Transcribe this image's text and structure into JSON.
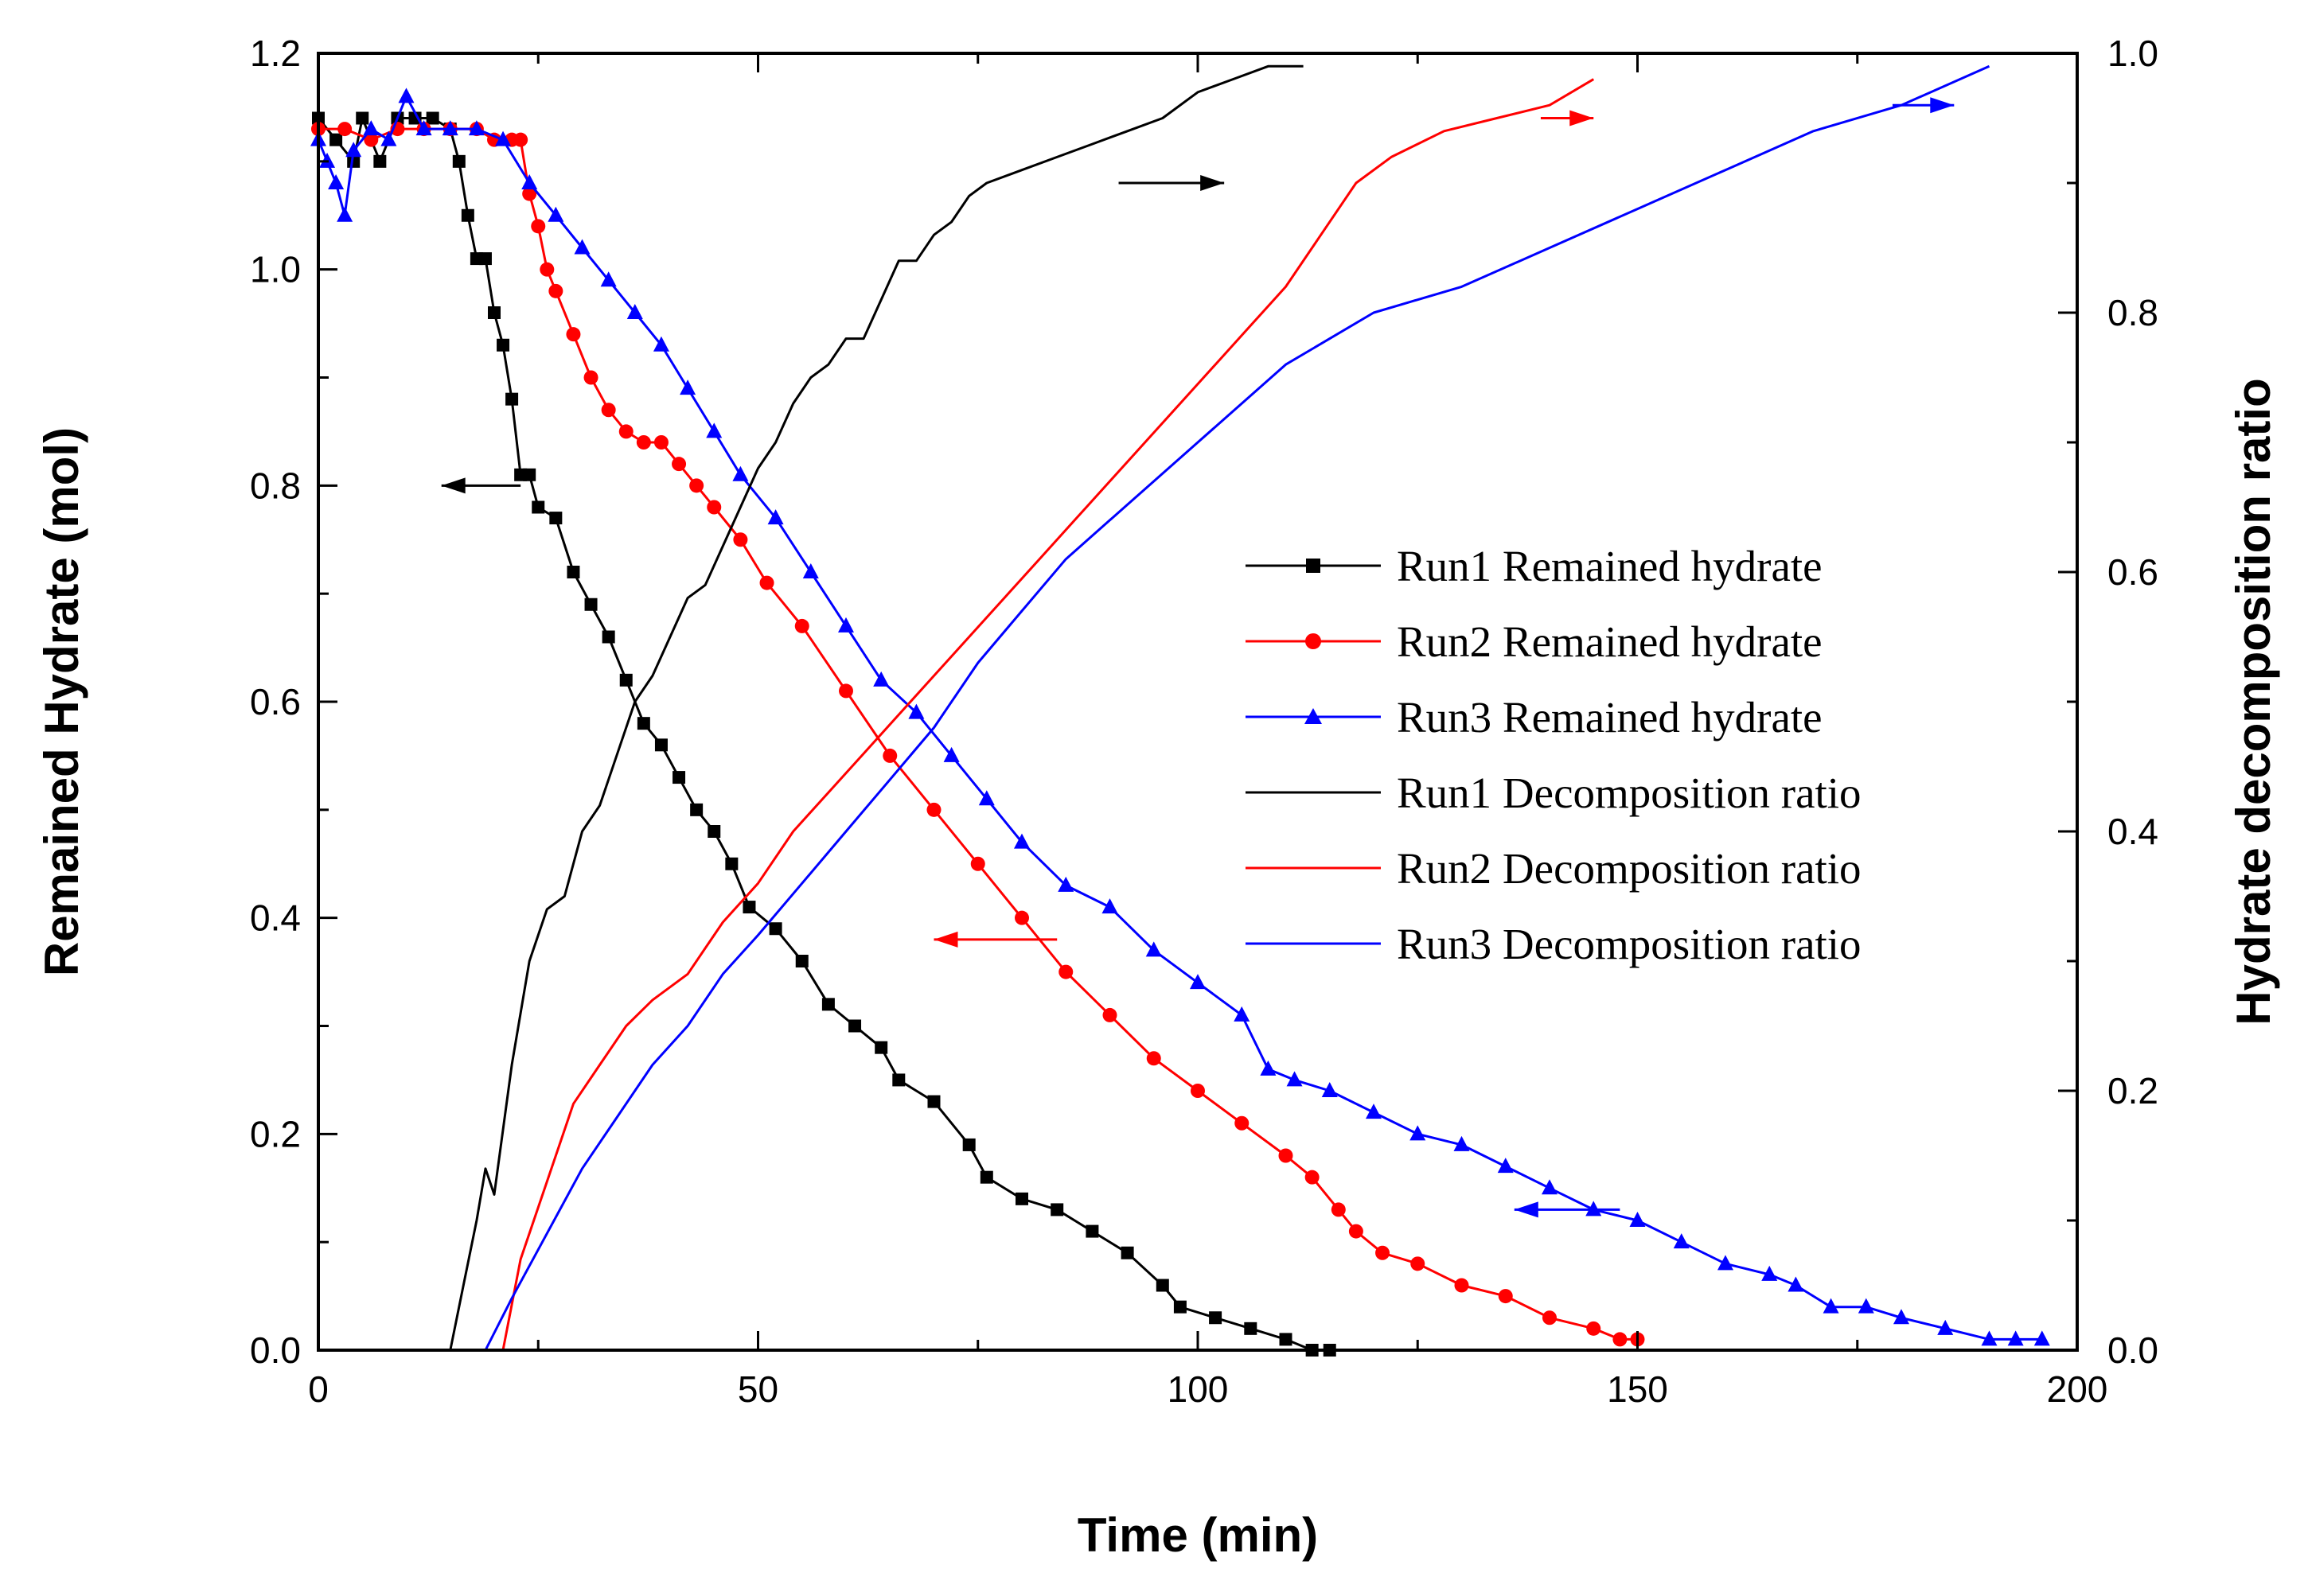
{
  "chart_data": {
    "type": "line",
    "title": "",
    "xlabel": "Time (min)",
    "ylabel_left": "Remained Hydrate (mol)",
    "ylabel_right": "Hydrate decomposition ratio",
    "xlim": [
      0,
      200
    ],
    "ylim_left": [
      0,
      1.2
    ],
    "ylim_right": [
      0,
      1.0
    ],
    "x_ticks": [
      0,
      50,
      100,
      150,
      200
    ],
    "y_left_ticks": [
      "0.0",
      "0.2",
      "0.4",
      "0.6",
      "0.8",
      "1.0",
      "1.2"
    ],
    "y_right_ticks": [
      "0.0",
      "0.2",
      "0.4",
      "0.6",
      "0.8",
      "1.0"
    ],
    "grid": false,
    "legend_position": "center-right",
    "colors": {
      "run1": "#000000",
      "run2": "#ff0000",
      "run3": "#0000ff"
    },
    "series": [
      {
        "name": "Run1 Remained hydrate",
        "axis": "left",
        "color": "#000000",
        "marker": "square",
        "x": [
          0,
          2,
          4,
          5,
          7,
          9,
          11,
          13,
          15,
          16,
          17,
          18,
          19,
          20,
          21,
          22,
          23,
          24,
          25,
          27,
          29,
          31,
          33,
          35,
          37,
          39,
          41,
          43,
          45,
          47,
          49,
          52,
          55,
          58,
          61,
          64,
          66,
          70,
          74,
          76,
          80,
          84,
          88,
          92,
          96,
          98,
          102,
          106,
          110,
          113,
          115
        ],
        "y": [
          1.14,
          1.12,
          1.1,
          1.14,
          1.1,
          1.14,
          1.14,
          1.14,
          1.13,
          1.1,
          1.05,
          1.01,
          1.01,
          0.96,
          0.93,
          0.88,
          0.81,
          0.81,
          0.78,
          0.77,
          0.72,
          0.69,
          0.66,
          0.62,
          0.58,
          0.56,
          0.53,
          0.5,
          0.48,
          0.45,
          0.41,
          0.39,
          0.36,
          0.32,
          0.3,
          0.28,
          0.25,
          0.23,
          0.19,
          0.16,
          0.14,
          0.13,
          0.11,
          0.09,
          0.06,
          0.04,
          0.03,
          0.02,
          0.01,
          0.0,
          0.0
        ]
      },
      {
        "name": "Run2 Remained hydrate",
        "axis": "left",
        "color": "#ff0000",
        "marker": "circle",
        "x": [
          0,
          3,
          6,
          9,
          12,
          15,
          18,
          20,
          22,
          23,
          24,
          25,
          26,
          27,
          29,
          31,
          33,
          35,
          37,
          39,
          41,
          43,
          45,
          48,
          51,
          55,
          60,
          65,
          70,
          75,
          80,
          85,
          90,
          95,
          100,
          105,
          110,
          113,
          116,
          118,
          121,
          125,
          130,
          135,
          140,
          145,
          148,
          150
        ],
        "y": [
          1.13,
          1.13,
          1.12,
          1.13,
          1.13,
          1.13,
          1.13,
          1.12,
          1.12,
          1.12,
          1.07,
          1.04,
          1.0,
          0.98,
          0.94,
          0.9,
          0.87,
          0.85,
          0.84,
          0.84,
          0.82,
          0.8,
          0.78,
          0.75,
          0.71,
          0.67,
          0.61,
          0.55,
          0.5,
          0.45,
          0.4,
          0.35,
          0.31,
          0.27,
          0.24,
          0.21,
          0.18,
          0.16,
          0.13,
          0.11,
          0.09,
          0.08,
          0.06,
          0.05,
          0.03,
          0.02,
          0.01,
          0.01
        ]
      },
      {
        "name": "Run3 Remained hydrate",
        "axis": "left",
        "color": "#0000ff",
        "marker": "triangle",
        "x": [
          0,
          1,
          2,
          3,
          4,
          6,
          8,
          10,
          12,
          15,
          18,
          21,
          24,
          27,
          30,
          33,
          36,
          39,
          42,
          45,
          48,
          52,
          56,
          60,
          64,
          68,
          72,
          76,
          80,
          85,
          90,
          95,
          100,
          105,
          108,
          111,
          115,
          120,
          125,
          130,
          135,
          140,
          145,
          150,
          155,
          160,
          165,
          168,
          172,
          176,
          180,
          185,
          190,
          193,
          196
        ],
        "y": [
          1.12,
          1.1,
          1.08,
          1.05,
          1.11,
          1.13,
          1.12,
          1.16,
          1.13,
          1.13,
          1.13,
          1.12,
          1.08,
          1.05,
          1.02,
          0.99,
          0.96,
          0.93,
          0.89,
          0.85,
          0.81,
          0.77,
          0.72,
          0.67,
          0.62,
          0.59,
          0.55,
          0.51,
          0.47,
          0.43,
          0.41,
          0.37,
          0.34,
          0.31,
          0.26,
          0.25,
          0.24,
          0.22,
          0.2,
          0.19,
          0.17,
          0.15,
          0.13,
          0.12,
          0.1,
          0.08,
          0.07,
          0.06,
          0.04,
          0.04,
          0.03,
          0.02,
          0.01,
          0.01,
          0.01
        ]
      },
      {
        "name": "Run1 Decomposition ratio",
        "axis": "right",
        "color": "#000000",
        "marker": "none",
        "x": [
          0,
          15,
          16.5,
          18,
          19,
          20,
          22,
          24,
          26,
          28,
          30,
          32,
          34,
          36,
          38,
          40,
          42,
          44,
          46,
          48,
          50,
          52,
          54,
          56,
          58,
          60,
          62,
          64,
          66,
          68,
          70,
          72,
          74,
          76,
          80,
          84,
          88,
          92,
          96,
          100,
          104,
          108,
          112
        ],
        "y": [
          0,
          0,
          0.05,
          0.1,
          0.14,
          0.12,
          0.22,
          0.3,
          0.34,
          0.35,
          0.4,
          0.42,
          0.46,
          0.5,
          0.52,
          0.55,
          0.58,
          0.59,
          0.62,
          0.65,
          0.68,
          0.7,
          0.73,
          0.75,
          0.76,
          0.78,
          0.78,
          0.81,
          0.84,
          0.84,
          0.86,
          0.87,
          0.89,
          0.9,
          0.91,
          0.92,
          0.93,
          0.94,
          0.95,
          0.97,
          0.98,
          0.99,
          0.99
        ]
      },
      {
        "name": "Run2 Decomposition ratio",
        "axis": "right",
        "color": "#ff0000",
        "marker": "none",
        "x": [
          0,
          21,
          23,
          26,
          29,
          32,
          35,
          38,
          42,
          46,
          50,
          54,
          58,
          62,
          66,
          70,
          74,
          78,
          82,
          86,
          90,
          94,
          98,
          102,
          106,
          110,
          114,
          118,
          122,
          128,
          134,
          140,
          145
        ],
        "y": [
          0,
          0,
          0.07,
          0.13,
          0.19,
          0.22,
          0.25,
          0.27,
          0.29,
          0.33,
          0.36,
          0.4,
          0.43,
          0.46,
          0.49,
          0.52,
          0.55,
          0.58,
          0.61,
          0.64,
          0.67,
          0.7,
          0.73,
          0.76,
          0.79,
          0.82,
          0.86,
          0.9,
          0.92,
          0.94,
          0.95,
          0.96,
          0.98
        ]
      },
      {
        "name": "Run3 Decomposition ratio",
        "axis": "right",
        "color": "#0000ff",
        "marker": "none",
        "x": [
          0,
          19,
          22,
          26,
          30,
          34,
          38,
          42,
          46,
          50,
          55,
          60,
          65,
          70,
          75,
          80,
          85,
          90,
          95,
          100,
          105,
          110,
          115,
          120,
          130,
          140,
          150,
          160,
          170,
          180,
          190
        ],
        "y": [
          0,
          0,
          0.04,
          0.09,
          0.14,
          0.18,
          0.22,
          0.25,
          0.29,
          0.32,
          0.36,
          0.4,
          0.44,
          0.48,
          0.53,
          0.57,
          0.61,
          0.64,
          0.67,
          0.7,
          0.73,
          0.76,
          0.78,
          0.8,
          0.82,
          0.85,
          0.88,
          0.91,
          0.94,
          0.96,
          0.99
        ]
      }
    ],
    "arrows": [
      {
        "name": "run1-left-arrow",
        "color": "#000000",
        "from": [
          23,
          0.8
        ],
        "to": [
          14,
          0.8
        ],
        "axis": "left"
      },
      {
        "name": "run1-right-arrow",
        "color": "#000000",
        "from": [
          91,
          0.9
        ],
        "to": [
          103,
          0.9
        ],
        "axis": "right"
      },
      {
        "name": "run2-left-arrow",
        "color": "#ff0000",
        "from": [
          84,
          0.38
        ],
        "to": [
          70,
          0.38
        ],
        "axis": "left"
      },
      {
        "name": "run2-right-arrow",
        "color": "#ff0000",
        "from": [
          139,
          0.95
        ],
        "to": [
          145,
          0.95
        ],
        "axis": "right"
      },
      {
        "name": "run3-left-arrow",
        "color": "#0000ff",
        "from": [
          148,
          0.13
        ],
        "to": [
          136,
          0.13
        ],
        "axis": "left"
      },
      {
        "name": "run3-right-arrow",
        "color": "#0000ff",
        "from": [
          179,
          0.96
        ],
        "to": [
          186,
          0.96
        ],
        "axis": "right"
      }
    ]
  }
}
